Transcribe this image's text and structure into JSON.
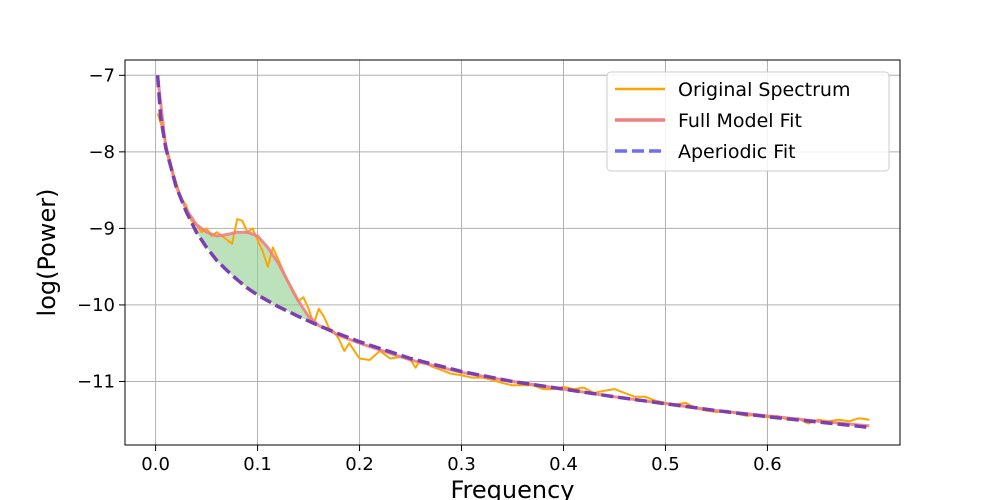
{
  "chart_data": {
    "type": "line",
    "title": "",
    "xlabel": "Frequency",
    "ylabel": "log(Power)",
    "xlim": [
      -0.03,
      0.73
    ],
    "ylim": [
      -11.83,
      -6.8
    ],
    "x_ticks": [
      0.0,
      0.1,
      0.2,
      0.3,
      0.4,
      0.5,
      0.6
    ],
    "x_tick_labels": [
      "0.0",
      "0.1",
      "0.2",
      "0.3",
      "0.4",
      "0.5",
      "0.6"
    ],
    "y_ticks": [
      -7,
      -8,
      -9,
      -10,
      -11
    ],
    "y_tick_labels": [
      "−7",
      "−8",
      "−9",
      "−10",
      "−11"
    ],
    "grid": true,
    "legend_position": "top-right",
    "series": [
      {
        "name": "Original Spectrum",
        "color": "#ffa500",
        "style": "solid",
        "x": [
          0.002,
          0.008,
          0.012,
          0.018,
          0.025,
          0.03,
          0.035,
          0.04,
          0.045,
          0.05,
          0.055,
          0.06,
          0.065,
          0.07,
          0.075,
          0.08,
          0.085,
          0.09,
          0.095,
          0.1,
          0.105,
          0.11,
          0.115,
          0.12,
          0.125,
          0.13,
          0.135,
          0.14,
          0.145,
          0.15,
          0.155,
          0.16,
          0.165,
          0.17,
          0.175,
          0.18,
          0.185,
          0.19,
          0.195,
          0.2,
          0.21,
          0.22,
          0.23,
          0.24,
          0.25,
          0.255,
          0.26,
          0.27,
          0.28,
          0.29,
          0.3,
          0.31,
          0.32,
          0.33,
          0.34,
          0.35,
          0.36,
          0.37,
          0.38,
          0.39,
          0.4,
          0.41,
          0.42,
          0.43,
          0.44,
          0.45,
          0.46,
          0.47,
          0.48,
          0.49,
          0.5,
          0.51,
          0.52,
          0.53,
          0.54,
          0.55,
          0.56,
          0.57,
          0.58,
          0.59,
          0.6,
          0.61,
          0.62,
          0.63,
          0.64,
          0.65,
          0.66,
          0.67,
          0.68,
          0.69,
          0.7
        ],
        "y": [
          -7.5,
          -7.75,
          -8.0,
          -8.3,
          -8.6,
          -8.7,
          -8.9,
          -8.95,
          -9.05,
          -9.0,
          -9.1,
          -9.05,
          -9.1,
          -9.15,
          -9.2,
          -8.88,
          -8.9,
          -9.05,
          -9.0,
          -9.15,
          -9.3,
          -9.5,
          -9.25,
          -9.4,
          -9.55,
          -9.7,
          -9.85,
          -9.95,
          -9.9,
          -10.05,
          -10.25,
          -10.05,
          -10.15,
          -10.3,
          -10.35,
          -10.45,
          -10.6,
          -10.5,
          -10.6,
          -10.7,
          -10.72,
          -10.6,
          -10.7,
          -10.68,
          -10.72,
          -10.82,
          -10.72,
          -10.8,
          -10.85,
          -10.9,
          -10.92,
          -10.95,
          -10.95,
          -10.98,
          -11.02,
          -11.05,
          -11.05,
          -11.05,
          -11.1,
          -11.1,
          -11.07,
          -11.1,
          -11.08,
          -11.15,
          -11.12,
          -11.1,
          -11.15,
          -11.2,
          -11.2,
          -11.25,
          -11.28,
          -11.3,
          -11.28,
          -11.35,
          -11.38,
          -11.4,
          -11.38,
          -11.42,
          -11.45,
          -11.43,
          -11.47,
          -11.45,
          -11.5,
          -11.48,
          -11.55,
          -11.5,
          -11.52,
          -11.5,
          -11.52,
          -11.48,
          -11.5
        ]
      },
      {
        "name": "Full Model Fit",
        "color": "#f08080",
        "style": "solid",
        "x": [
          0.002,
          0.01,
          0.02,
          0.03,
          0.04,
          0.05,
          0.06,
          0.07,
          0.08,
          0.09,
          0.1,
          0.11,
          0.12,
          0.13,
          0.14,
          0.15,
          0.16,
          0.17,
          0.18,
          0.2,
          0.25,
          0.3,
          0.35,
          0.4,
          0.45,
          0.5,
          0.55,
          0.6,
          0.65,
          0.7
        ],
        "y": [
          -7.0,
          -7.95,
          -8.45,
          -8.75,
          -8.95,
          -9.05,
          -9.1,
          -9.08,
          -9.05,
          -9.05,
          -9.1,
          -9.25,
          -9.45,
          -9.7,
          -9.95,
          -10.15,
          -10.27,
          -10.33,
          -10.4,
          -10.5,
          -10.72,
          -10.88,
          -11.0,
          -11.1,
          -11.2,
          -11.29,
          -11.38,
          -11.45,
          -11.52,
          -11.58
        ]
      },
      {
        "name": "Aperiodic Fit",
        "color": "#6f6ff5",
        "style": "dashed",
        "x": [
          0.002,
          0.005,
          0.01,
          0.02,
          0.03,
          0.04,
          0.05,
          0.06,
          0.07,
          0.08,
          0.09,
          0.1,
          0.12,
          0.14,
          0.16,
          0.18,
          0.2,
          0.25,
          0.3,
          0.35,
          0.4,
          0.45,
          0.5,
          0.55,
          0.6,
          0.65,
          0.7
        ],
        "y": [
          -7.0,
          -7.55,
          -7.95,
          -8.45,
          -8.78,
          -9.05,
          -9.25,
          -9.42,
          -9.55,
          -9.67,
          -9.78,
          -9.87,
          -10.02,
          -10.15,
          -10.27,
          -10.38,
          -10.48,
          -10.7,
          -10.87,
          -11.0,
          -11.1,
          -11.2,
          -11.29,
          -11.38,
          -11.46,
          -11.53,
          -11.6
        ]
      }
    ],
    "fill": {
      "between": [
        "Full Model Fit",
        "Aperiodic Fit"
      ],
      "x_range": [
        0.04,
        0.16
      ],
      "color": "#8fce8f"
    },
    "overlap_color": "#7b3fb0"
  }
}
